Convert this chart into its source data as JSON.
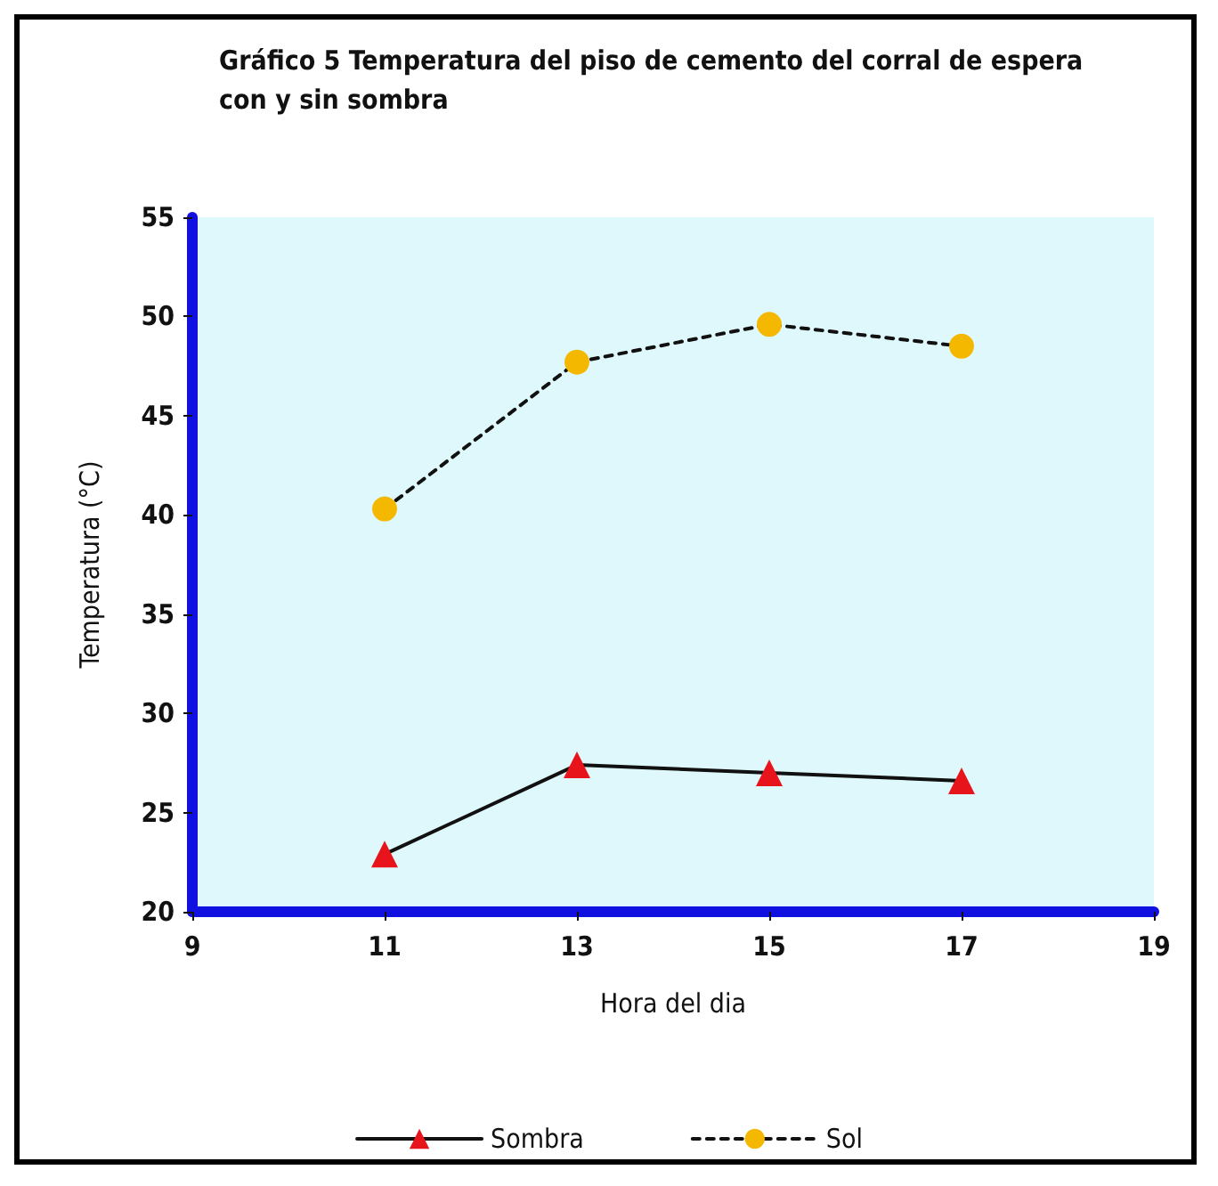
{
  "chart_data": {
    "type": "line",
    "title": "Gráfico 5 Temperatura del piso de cemento del corral de espera con y sin sombra",
    "xlabel": "Hora del dia",
    "ylabel": "Temperatura (°C)",
    "x": [
      11,
      13,
      15,
      17
    ],
    "series": [
      {
        "name": "Sombra",
        "color": "#e8141c",
        "values": [
          22.9,
          27.4,
          27.0,
          26.6
        ],
        "marker": "triangle",
        "line_style": "solid"
      },
      {
        "name": "Sol",
        "color": "#f5b800",
        "values": [
          40.3,
          47.7,
          49.6,
          48.5
        ],
        "marker": "circle",
        "line_style": "dashed"
      }
    ],
    "xlim": [
      9,
      19
    ],
    "xticks": [
      9,
      11,
      13,
      15,
      17,
      19
    ],
    "ylim": [
      20,
      55
    ],
    "yticks": [
      20,
      25,
      30,
      35,
      40,
      45,
      50,
      55
    ],
    "grid": false,
    "legend": "bottom"
  }
}
